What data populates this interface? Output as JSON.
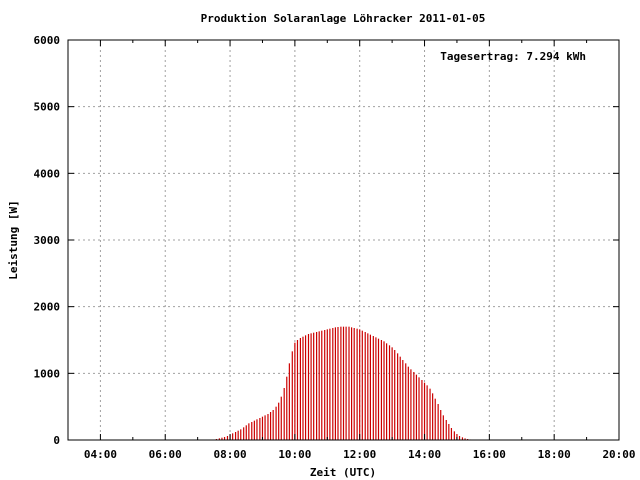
{
  "chart_data": {
    "type": "bar",
    "title": "Produktion Solaranlage Löhracker 2011-01-05",
    "xlabel": "Zeit (UTC)",
    "ylabel": "Leistung [W]",
    "annotation": "Tagesertrag: 7.294 kWh",
    "x_unit": "hours_utc",
    "xlim": [
      3.0,
      20.0
    ],
    "ylim": [
      0,
      6000
    ],
    "x_ticks": [
      {
        "value": 4,
        "label": "04:00"
      },
      {
        "value": 6,
        "label": "06:00"
      },
      {
        "value": 8,
        "label": "08:00"
      },
      {
        "value": 10,
        "label": "10:00"
      },
      {
        "value": 12,
        "label": "12:00"
      },
      {
        "value": 14,
        "label": "14:00"
      },
      {
        "value": 16,
        "label": "16:00"
      },
      {
        "value": 18,
        "label": "18:00"
      },
      {
        "value": 20,
        "label": "20:00"
      }
    ],
    "y_ticks": [
      {
        "value": 0,
        "label": "0"
      },
      {
        "value": 1000,
        "label": "1000"
      },
      {
        "value": 2000,
        "label": "2000"
      },
      {
        "value": 3000,
        "label": "3000"
      },
      {
        "value": 4000,
        "label": "4000"
      },
      {
        "value": 5000,
        "label": "5000"
      },
      {
        "value": 6000,
        "label": "6000"
      }
    ],
    "grid": true,
    "bar_color": "#cc0000",
    "series": [
      {
        "x": [
          7.5,
          7.58,
          7.67,
          7.75,
          7.83,
          7.92,
          8.0,
          8.08,
          8.17,
          8.25,
          8.33,
          8.42,
          8.5,
          8.58,
          8.67,
          8.75,
          8.83,
          8.92,
          9.0,
          9.08,
          9.17,
          9.25,
          9.33,
          9.42,
          9.5,
          9.58,
          9.67,
          9.75,
          9.83,
          9.92,
          10.0,
          10.08,
          10.17,
          10.25,
          10.33,
          10.42,
          10.5,
          10.58,
          10.67,
          10.75,
          10.83,
          10.92,
          11.0,
          11.08,
          11.17,
          11.25,
          11.33,
          11.42,
          11.5,
          11.58,
          11.67,
          11.75,
          11.83,
          11.92,
          12.0,
          12.08,
          12.17,
          12.25,
          12.33,
          12.42,
          12.5,
          12.58,
          12.67,
          12.75,
          12.83,
          12.92,
          13.0,
          13.08,
          13.17,
          13.25,
          13.33,
          13.42,
          13.5,
          13.58,
          13.67,
          13.75,
          13.83,
          13.92,
          14.0,
          14.08,
          14.17,
          14.25,
          14.33,
          14.42,
          14.5,
          14.58,
          14.67,
          14.75,
          14.83,
          14.92,
          15.0,
          15.08,
          15.17,
          15.25,
          15.33,
          15.42,
          15.5
        ],
        "values": [
          5,
          15,
          25,
          35,
          45,
          60,
          80,
          100,
          120,
          140,
          160,
          190,
          220,
          250,
          270,
          290,
          310,
          330,
          350,
          370,
          390,
          420,
          450,
          500,
          560,
          650,
          780,
          950,
          1150,
          1330,
          1460,
          1500,
          1530,
          1550,
          1570,
          1590,
          1600,
          1610,
          1620,
          1630,
          1640,
          1650,
          1660,
          1670,
          1680,
          1690,
          1695,
          1700,
          1700,
          1700,
          1700,
          1690,
          1680,
          1670,
          1660,
          1640,
          1620,
          1600,
          1580,
          1560,
          1540,
          1520,
          1500,
          1480,
          1450,
          1420,
          1390,
          1350,
          1300,
          1250,
          1200,
          1150,
          1100,
          1060,
          1020,
          980,
          940,
          900,
          860,
          820,
          770,
          700,
          620,
          540,
          450,
          370,
          300,
          240,
          180,
          130,
          90,
          60,
          40,
          25,
          15,
          8,
          3
        ]
      }
    ]
  }
}
